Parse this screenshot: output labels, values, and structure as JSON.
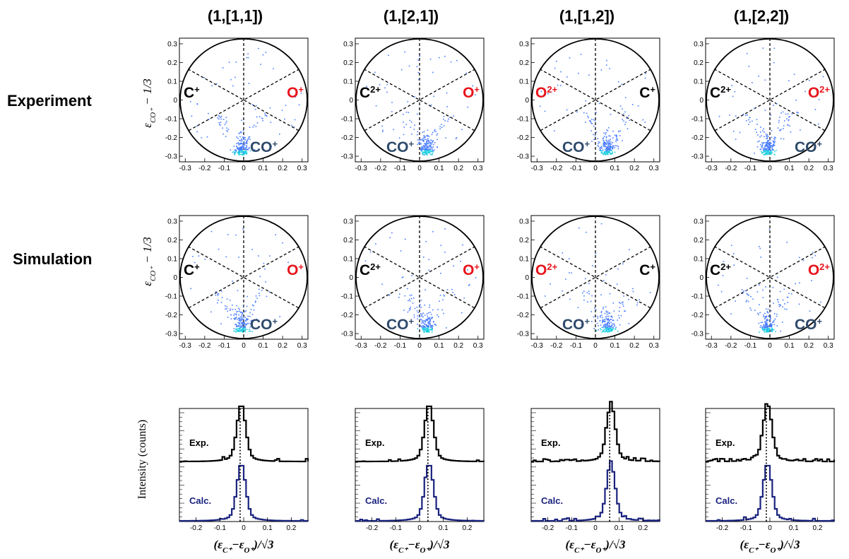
{
  "row_labels": {
    "experiment": "Experiment",
    "simulation": "Simulation"
  },
  "axis_titles": {
    "radial_y": "ε",
    "radial_y_sub": "CO⁺",
    "radial_y_tail": " − 1/3",
    "intensity_y": "Intensity (counts)",
    "x": "(ε",
    "x_sub1": "C⁺",
    "x_mid": "−ε",
    "x_sub2": "O⁺",
    "x_tail": ")/√3"
  },
  "ticks": {
    "radial": [
      "-0.3",
      "-0.2",
      "-0.1",
      "0",
      "0.1",
      "0.2",
      "0.3"
    ],
    "intensity_x": [
      "-0.2",
      "-0.1",
      "0",
      "0.1",
      "0.2"
    ]
  },
  "trace_labels": {
    "exp": "Exp.",
    "calc": "Calc."
  },
  "colors": {
    "black_ion": "#000000",
    "red_ion": "#e8141c",
    "blue_ion": "#2f4a6b",
    "calc_line": "#1a237e",
    "exp_line": "#000000"
  },
  "chart_data": [
    {
      "type": "scatter",
      "title": "(1,[1,1])",
      "xlim": [
        -0.33,
        0.33
      ],
      "ylim": [
        -0.33,
        0.33
      ],
      "labels": {
        "left": "C",
        "left_charge": "+",
        "right": "O",
        "right_charge": "+",
        "bottom": "CO",
        "bottom_charge": "+"
      },
      "experiment_peak": -0.015,
      "simulation_peak": -0.015
    },
    {
      "type": "scatter",
      "title": "(1,[2,1])",
      "xlim": [
        -0.33,
        0.33
      ],
      "ylim": [
        -0.33,
        0.33
      ],
      "labels": {
        "left": "C",
        "left_charge": "2+",
        "right": "O",
        "right_charge": "+",
        "bottom": "CO",
        "bottom_charge": "+"
      },
      "experiment_peak": 0.035,
      "simulation_peak": 0.035
    },
    {
      "type": "scatter",
      "title": "(1,[1,2])",
      "xlim": [
        -0.33,
        0.33
      ],
      "ylim": [
        -0.33,
        0.33
      ],
      "labels": {
        "left": "O",
        "left_charge": "2+",
        "right": "C",
        "right_charge": "+",
        "bottom": "CO",
        "bottom_charge": "+"
      },
      "experiment_peak": 0.06,
      "simulation_peak": 0.06
    },
    {
      "type": "scatter",
      "title": "(1,[2,2])",
      "xlim": [
        -0.33,
        0.33
      ],
      "ylim": [
        -0.33,
        0.33
      ],
      "labels": {
        "left": "C",
        "left_charge": "2+",
        "right": "O",
        "right_charge": "2+",
        "bottom": "CO",
        "bottom_charge": "+"
      },
      "experiment_peak": -0.015,
      "simulation_peak": -0.015
    }
  ]
}
